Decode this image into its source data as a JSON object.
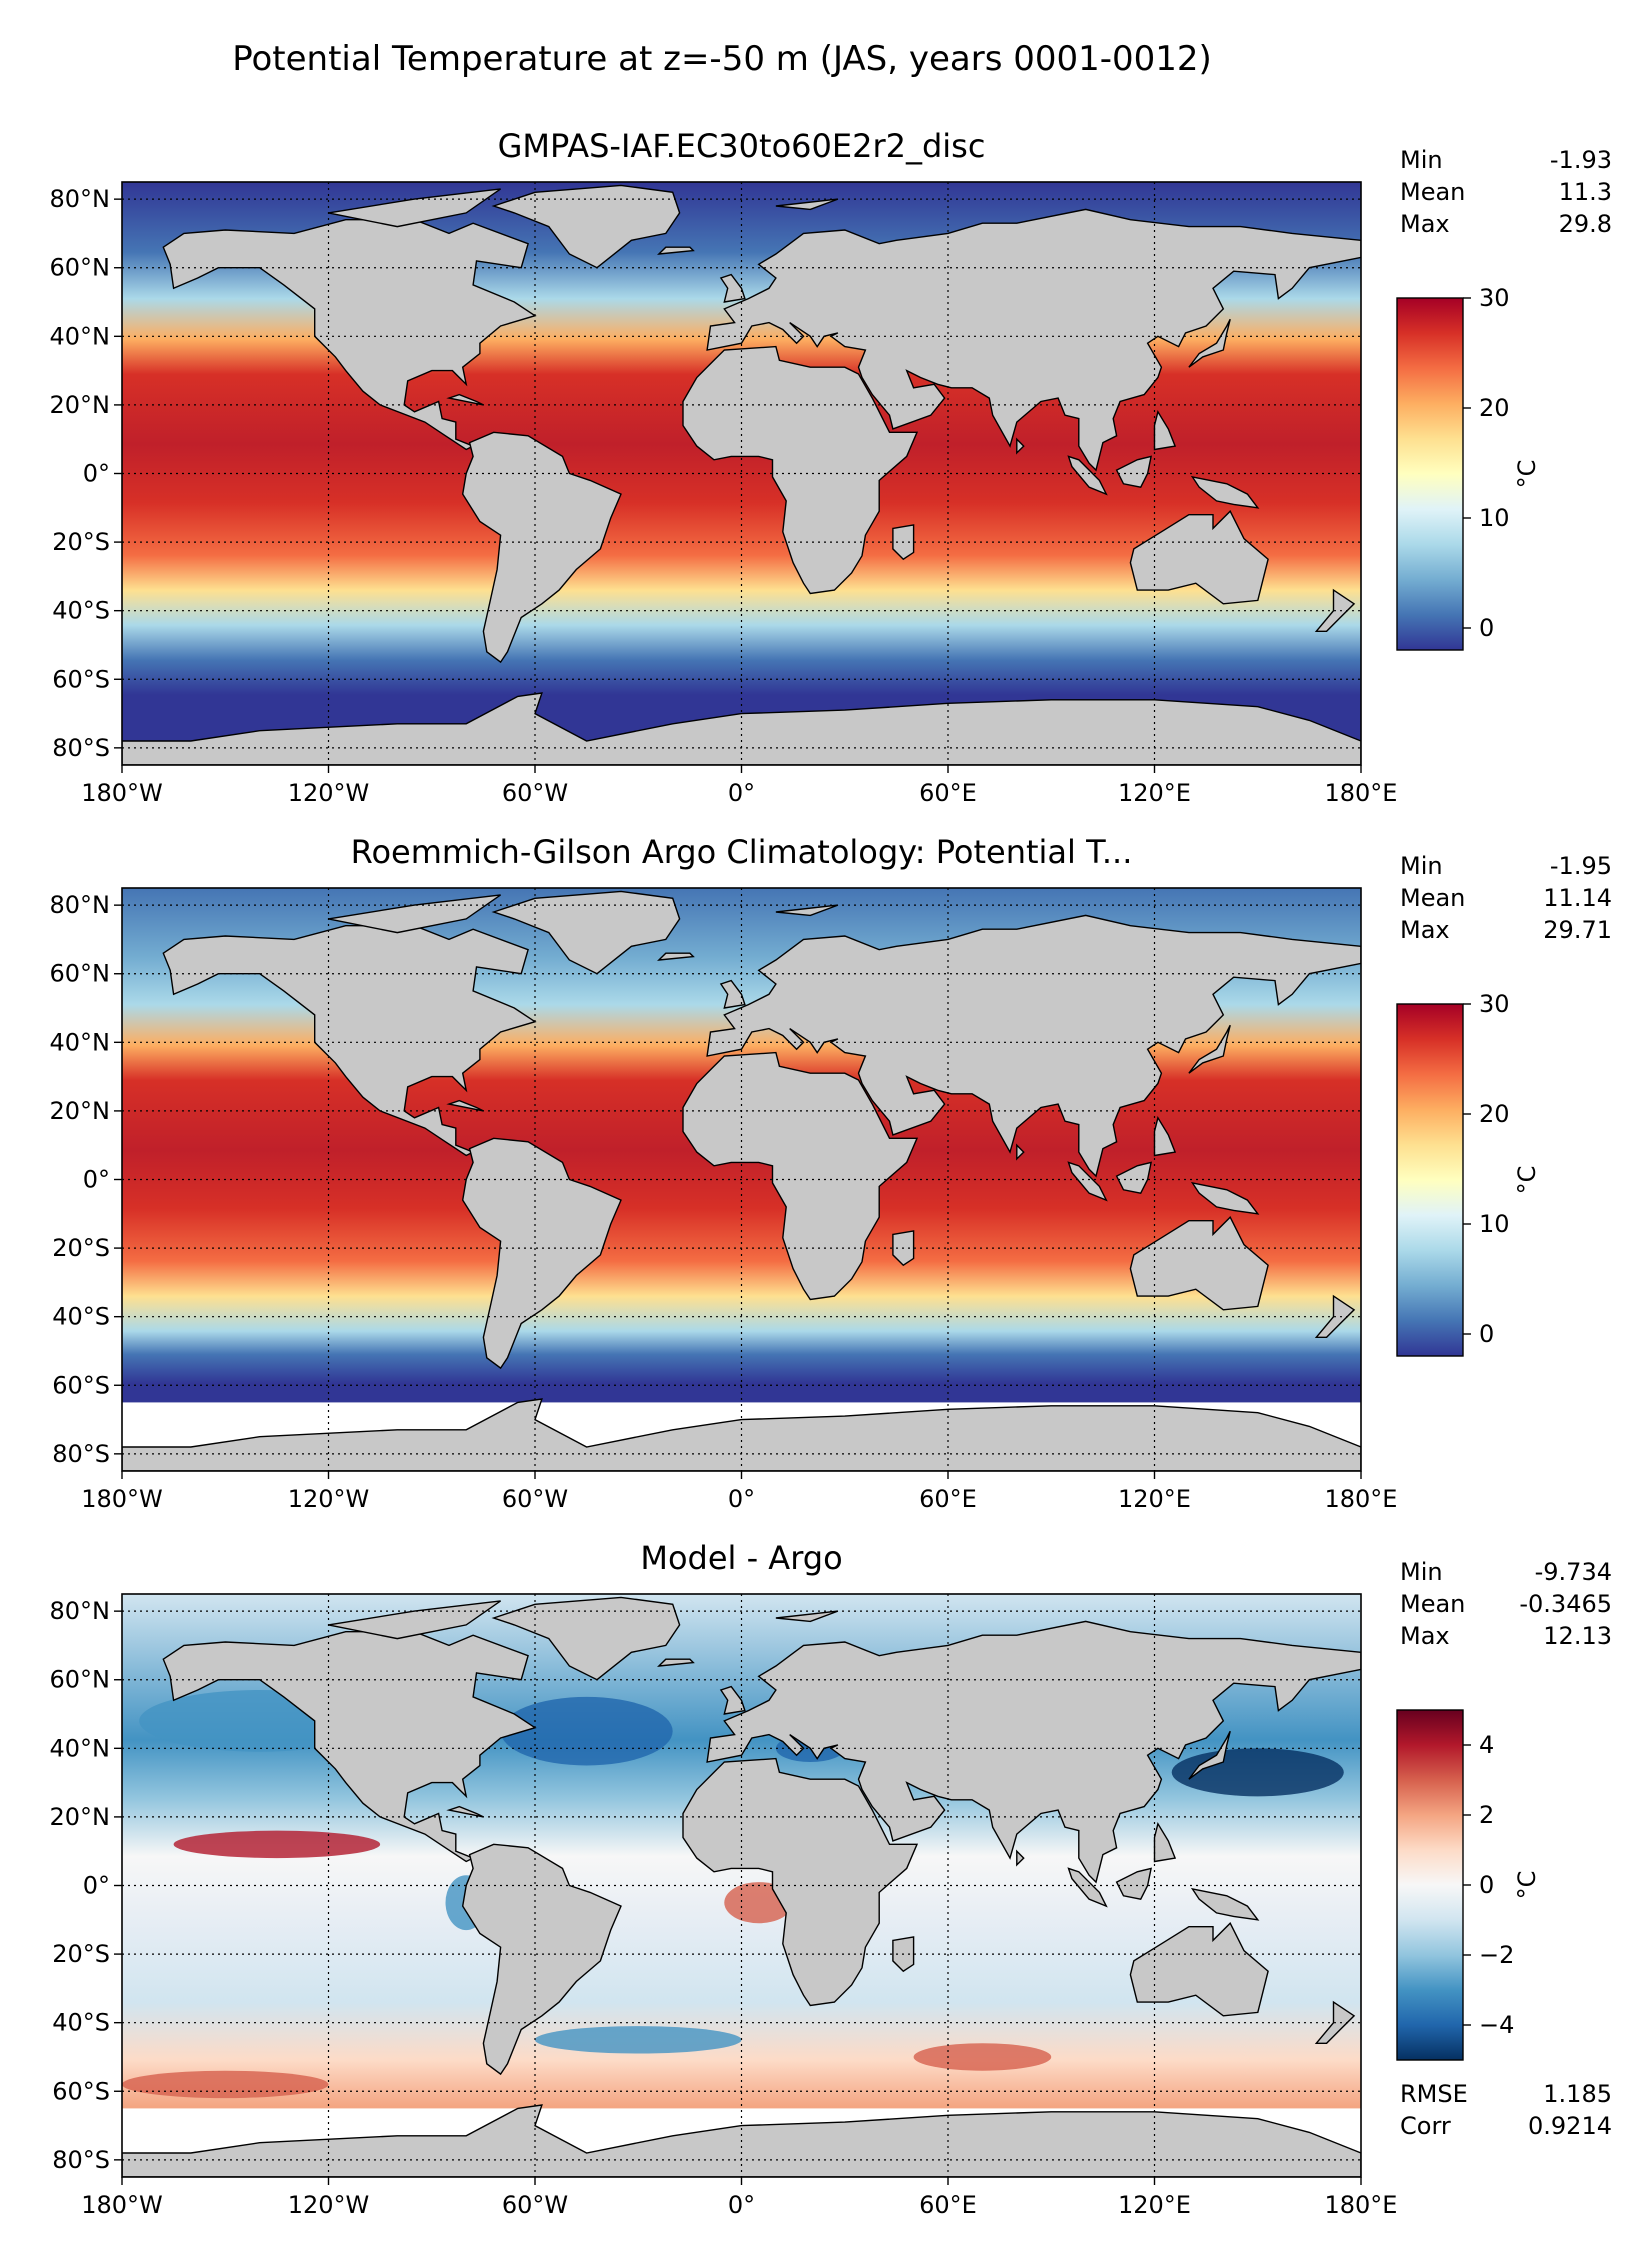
{
  "figure": {
    "suptitle": "Potential Temperature at z=-50 m (JAS, years 0001-0012)"
  },
  "axes_ticks": {
    "x": [
      "180°W",
      "120°W",
      "60°W",
      "0°",
      "60°E",
      "120°E",
      "180°E"
    ],
    "y": [
      "80°N",
      "60°N",
      "40°N",
      "20°N",
      "0°",
      "20°S",
      "40°S",
      "60°S",
      "80°S"
    ]
  },
  "chart_data": [
    {
      "type": "heatmap",
      "title": "GMPAS-IAF.EC30to60E2r2_disc",
      "projection": "plate carree, global",
      "xlim": [
        -180,
        180
      ],
      "ylim": [
        -85,
        85
      ],
      "grid": true,
      "stats": [
        {
          "label": "Min",
          "value": "-1.93"
        },
        {
          "label": "Mean",
          "value": "11.3"
        },
        {
          "label": "Max",
          "value": "29.8"
        }
      ],
      "colorbar": {
        "label": "°C",
        "colormap": "RdYlBu_r",
        "range": [
          -2,
          30
        ],
        "ticks": [
          "0",
          "10",
          "20",
          "30"
        ],
        "tick_values": [
          0,
          10,
          20,
          30
        ]
      },
      "masked_south_of": null
    },
    {
      "type": "heatmap",
      "title": "Roemmich-Gilson Argo Climatology: Potential T...",
      "projection": "plate carree, global",
      "xlim": [
        -180,
        180
      ],
      "ylim": [
        -85,
        85
      ],
      "grid": true,
      "stats": [
        {
          "label": "Min",
          "value": "-1.95"
        },
        {
          "label": "Mean",
          "value": "11.14"
        },
        {
          "label": "Max",
          "value": "29.71"
        }
      ],
      "colorbar": {
        "label": "°C",
        "colormap": "RdYlBu_r",
        "range": [
          -2,
          30
        ],
        "ticks": [
          "0",
          "10",
          "20",
          "30"
        ],
        "tick_values": [
          0,
          10,
          20,
          30
        ]
      },
      "masked_south_of": -65
    },
    {
      "type": "heatmap",
      "title": "Model - Argo",
      "projection": "plate carree, global",
      "xlim": [
        -180,
        180
      ],
      "ylim": [
        -85,
        85
      ],
      "grid": true,
      "stats": [
        {
          "label": "Min",
          "value": "-9.734"
        },
        {
          "label": "Mean",
          "value": "-0.3465"
        },
        {
          "label": "Max",
          "value": "12.13"
        }
      ],
      "extra_stats": [
        {
          "label": "RMSE",
          "value": "1.185"
        },
        {
          "label": "Corr",
          "value": "0.9214"
        }
      ],
      "colorbar": {
        "label": "°C",
        "colormap": "RdBu_r",
        "range": [
          -5,
          5
        ],
        "ticks": [
          "4",
          "2",
          "0",
          "−2",
          "−4"
        ],
        "tick_values": [
          4,
          2,
          0,
          -2,
          -4
        ]
      },
      "masked_south_of": -65
    }
  ],
  "colors": {
    "land": "#c8c8c8",
    "missing": "#ffffff",
    "rdylbu_r": [
      "#313695",
      "#4575b4",
      "#74add1",
      "#abd9e9",
      "#e0f3f8",
      "#ffffbf",
      "#fee090",
      "#fdae61",
      "#f46d43",
      "#d73027",
      "#a50026"
    ],
    "rdbu_r": [
      "#053061",
      "#2166ac",
      "#4393c3",
      "#92c5de",
      "#d1e5f0",
      "#f7f7f7",
      "#fddbc7",
      "#f4a582",
      "#d6604d",
      "#b2182b",
      "#67001f"
    ]
  }
}
